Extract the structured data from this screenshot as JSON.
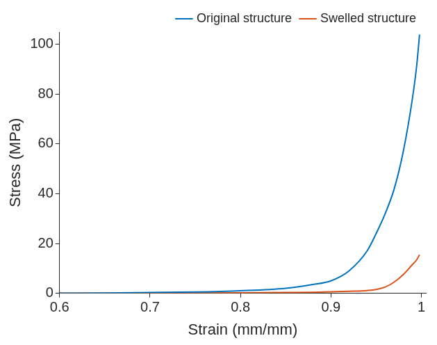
{
  "chart_data": {
    "type": "line",
    "x_label": "Strain (mm/mm)",
    "y_label": "Stress (MPa)",
    "x": [
      0.6,
      0.65,
      0.7,
      0.75,
      0.8,
      0.85,
      0.88,
      0.9,
      0.92,
      0.94,
      0.95,
      0.96,
      0.97,
      0.98,
      0.99,
      0.995,
      0.998
    ],
    "series": [
      {
        "name": "Original structure",
        "color": "#0072bd",
        "line_style": "solid",
        "values": [
          0,
          0.1,
          0.3,
          0.5,
          1,
          2,
          3.5,
          5,
          9,
          17,
          24,
          32,
          42,
          57,
          78,
          92,
          104
        ]
      },
      {
        "name": "Swelled structure",
        "color": "#d95319",
        "line_style": "solid",
        "values": [
          0,
          0,
          0,
          0.1,
          0.2,
          0.3,
          0.4,
          0.6,
          0.8,
          1.1,
          1.5,
          2.5,
          4.5,
          7.5,
          11.5,
          13.5,
          15.5
        ]
      }
    ],
    "xlim": [
      0.6,
      1.005
    ],
    "xticks": [
      0.6,
      0.7,
      0.8,
      0.9,
      1
    ],
    "ylim": [
      0,
      105
    ],
    "yticks": [
      0,
      20,
      40,
      60,
      80,
      100
    ],
    "grid": false,
    "legend": "upper right"
  }
}
